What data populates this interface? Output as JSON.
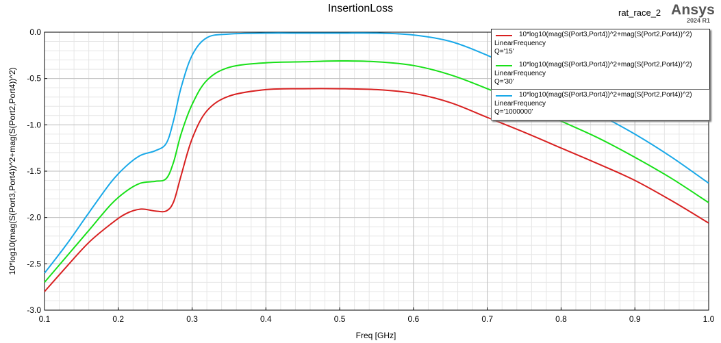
{
  "header": {
    "title": "InsertionLoss",
    "project": "rat_race_2",
    "brand": "Ansys",
    "version": "2024 R1"
  },
  "legend": [
    {
      "expr": "10*log10(mag(S(Port3,Port4))^2+mag(S(Port2,Port4))^2)",
      "sweep": "LinearFrequency",
      "variation": "Q='15'",
      "color": "#d82020"
    },
    {
      "expr": "10*log10(mag(S(Port3,Port4))^2+mag(S(Port2,Port4))^2)",
      "sweep": "LinearFrequency",
      "variation": "Q='30'",
      "color": "#18e018"
    },
    {
      "expr": "10*log10(mag(S(Port3,Port4))^2+mag(S(Port2,Port4))^2)",
      "sweep": "LinearFrequency",
      "variation": "Q='1000000'",
      "color": "#18a8e8"
    }
  ],
  "chart_data": {
    "type": "line",
    "title": "InsertionLoss",
    "xlabel": "Freq [GHz]",
    "ylabel": "10*log10(mag(S(Port3,Port4))^2+mag(S(Port2,Port4))^2)",
    "xlim": [
      0.1,
      1.0
    ],
    "ylim": [
      -3.0,
      0.0
    ],
    "xticks": [
      "0.1",
      "0.2",
      "0.3",
      "0.4",
      "0.5",
      "0.6",
      "0.7",
      "0.8",
      "0.9",
      "1.0"
    ],
    "yticks": [
      "0.0",
      "-0.5",
      "-1.0",
      "-1.5",
      "-2.0",
      "-2.5",
      "-3.0"
    ],
    "grid": true,
    "legend_position": "top-right",
    "x": [
      0.1,
      0.13,
      0.16,
      0.19,
      0.21,
      0.23,
      0.25,
      0.265,
      0.275,
      0.285,
      0.3,
      0.32,
      0.35,
      0.4,
      0.45,
      0.5,
      0.55,
      0.6,
      0.65,
      0.7,
      0.75,
      0.8,
      0.85,
      0.9,
      0.95,
      1.0
    ],
    "series": [
      {
        "name": "Q='15'",
        "color": "#d82020",
        "values": [
          -2.8,
          -2.53,
          -2.27,
          -2.07,
          -1.96,
          -1.91,
          -1.93,
          -1.93,
          -1.83,
          -1.55,
          -1.15,
          -0.85,
          -0.69,
          -0.62,
          -0.61,
          -0.61,
          -0.62,
          -0.66,
          -0.76,
          -0.92,
          -1.08,
          -1.25,
          -1.42,
          -1.6,
          -1.82,
          -2.06
        ]
      },
      {
        "name": "Q='30'",
        "color": "#18e018",
        "values": [
          -2.7,
          -2.42,
          -2.14,
          -1.86,
          -1.72,
          -1.63,
          -1.61,
          -1.58,
          -1.4,
          -1.1,
          -0.78,
          -0.52,
          -0.38,
          -0.33,
          -0.32,
          -0.31,
          -0.32,
          -0.36,
          -0.46,
          -0.61,
          -0.78,
          -0.96,
          -1.14,
          -1.35,
          -1.58,
          -1.84
        ]
      },
      {
        "name": "Q='1000000'",
        "color": "#18a8e8",
        "values": [
          -2.6,
          -2.29,
          -1.95,
          -1.62,
          -1.45,
          -1.33,
          -1.28,
          -1.2,
          -0.95,
          -0.6,
          -0.25,
          -0.06,
          -0.02,
          -0.01,
          -0.01,
          -0.01,
          -0.01,
          -0.03,
          -0.1,
          -0.25,
          -0.44,
          -0.66,
          -0.88,
          -1.1,
          -1.35,
          -1.63
        ]
      }
    ]
  }
}
